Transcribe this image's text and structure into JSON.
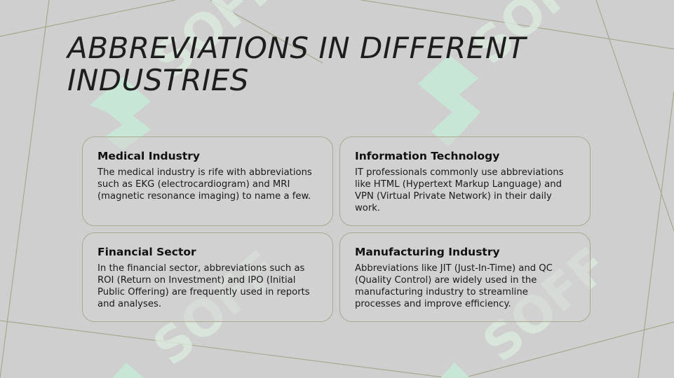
{
  "slide": {
    "title": "ABBREVIATIONS IN DIFFERENT INDUSTRIES",
    "cards": [
      {
        "heading": "Medical Industry",
        "body": "The medical industry is rife with abbreviations such as EKG (electrocardiogram) and MRI (magnetic resonance imaging) to name a few."
      },
      {
        "heading": "Information Technology",
        "body": "IT professionals commonly use abbreviations like HTML (Hypertext Markup Language) and VPN (Virtual Private Network) in their daily work."
      },
      {
        "heading": "Financial Sector",
        "body": "In the financial sector, abbreviations such as ROI (Return on Investment) and IPO (Initial Public Offering) are frequently used in reports and analyses."
      },
      {
        "heading": "Manufacturing Industry",
        "body": "Abbreviations like JIT (Just-In-Time) and QC (Quality Control) are widely used in the manufacturing industry to streamline processes and improve efficiency."
      }
    ]
  },
  "watermark": {
    "text": "SOFF",
    "color": "#c6e8d6"
  },
  "colors": {
    "background": "#cfcfcf",
    "line": "#a8a890",
    "card_border": "#a9a98f",
    "title": "#1e1e1e"
  }
}
